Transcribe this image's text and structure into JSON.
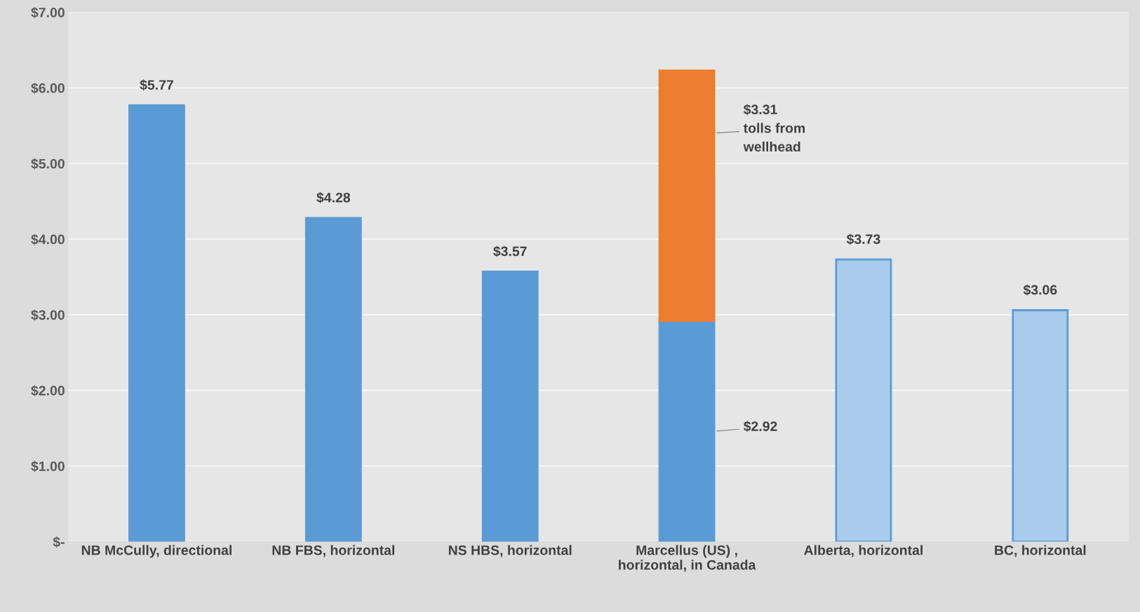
{
  "chart_data": {
    "type": "bar",
    "stacked": true,
    "categories": [
      "NB McCully, directional",
      "NB FBS, horizontal",
      "NS HBS, horizontal",
      "Marcellus (US) ,\nhorizontal, in Canada",
      "Alberta, horizontal",
      "BC, horizontal"
    ],
    "series": [
      {
        "color": "#5b9bd5",
        "values": [
          5.77,
          4.28,
          3.57,
          2.92,
          3.73,
          3.06
        ],
        "value_labels": [
          "$5.77",
          "$4.28",
          "$3.57",
          "$2.92",
          "$3.73",
          "$3.06"
        ],
        "colors": [
          "#5b9bd5",
          "#5b9bd5",
          "#5b9bd5",
          "#5b9bd5",
          "#a9cbec",
          "#a9cbec"
        ]
      },
      {
        "color": "#ed7d31",
        "values": [
          null,
          null,
          null,
          3.31,
          null,
          null
        ],
        "value_labels": [
          null,
          null,
          null,
          "$3.31\ntolls from\nwellhead",
          null,
          null
        ]
      }
    ],
    "ylim": [
      0,
      7
    ],
    "yticks": [
      {
        "value": 0,
        "label": "$-"
      },
      {
        "value": 1,
        "label": "$1.00"
      },
      {
        "value": 2,
        "label": "$2.00"
      },
      {
        "value": 3,
        "label": "$3.00"
      },
      {
        "value": 4,
        "label": "$4.00"
      },
      {
        "value": 5,
        "label": "$5.00"
      },
      {
        "value": 6,
        "label": "$6.00"
      },
      {
        "value": 7,
        "label": "$7.00"
      }
    ],
    "grid": "y",
    "legend": false
  }
}
